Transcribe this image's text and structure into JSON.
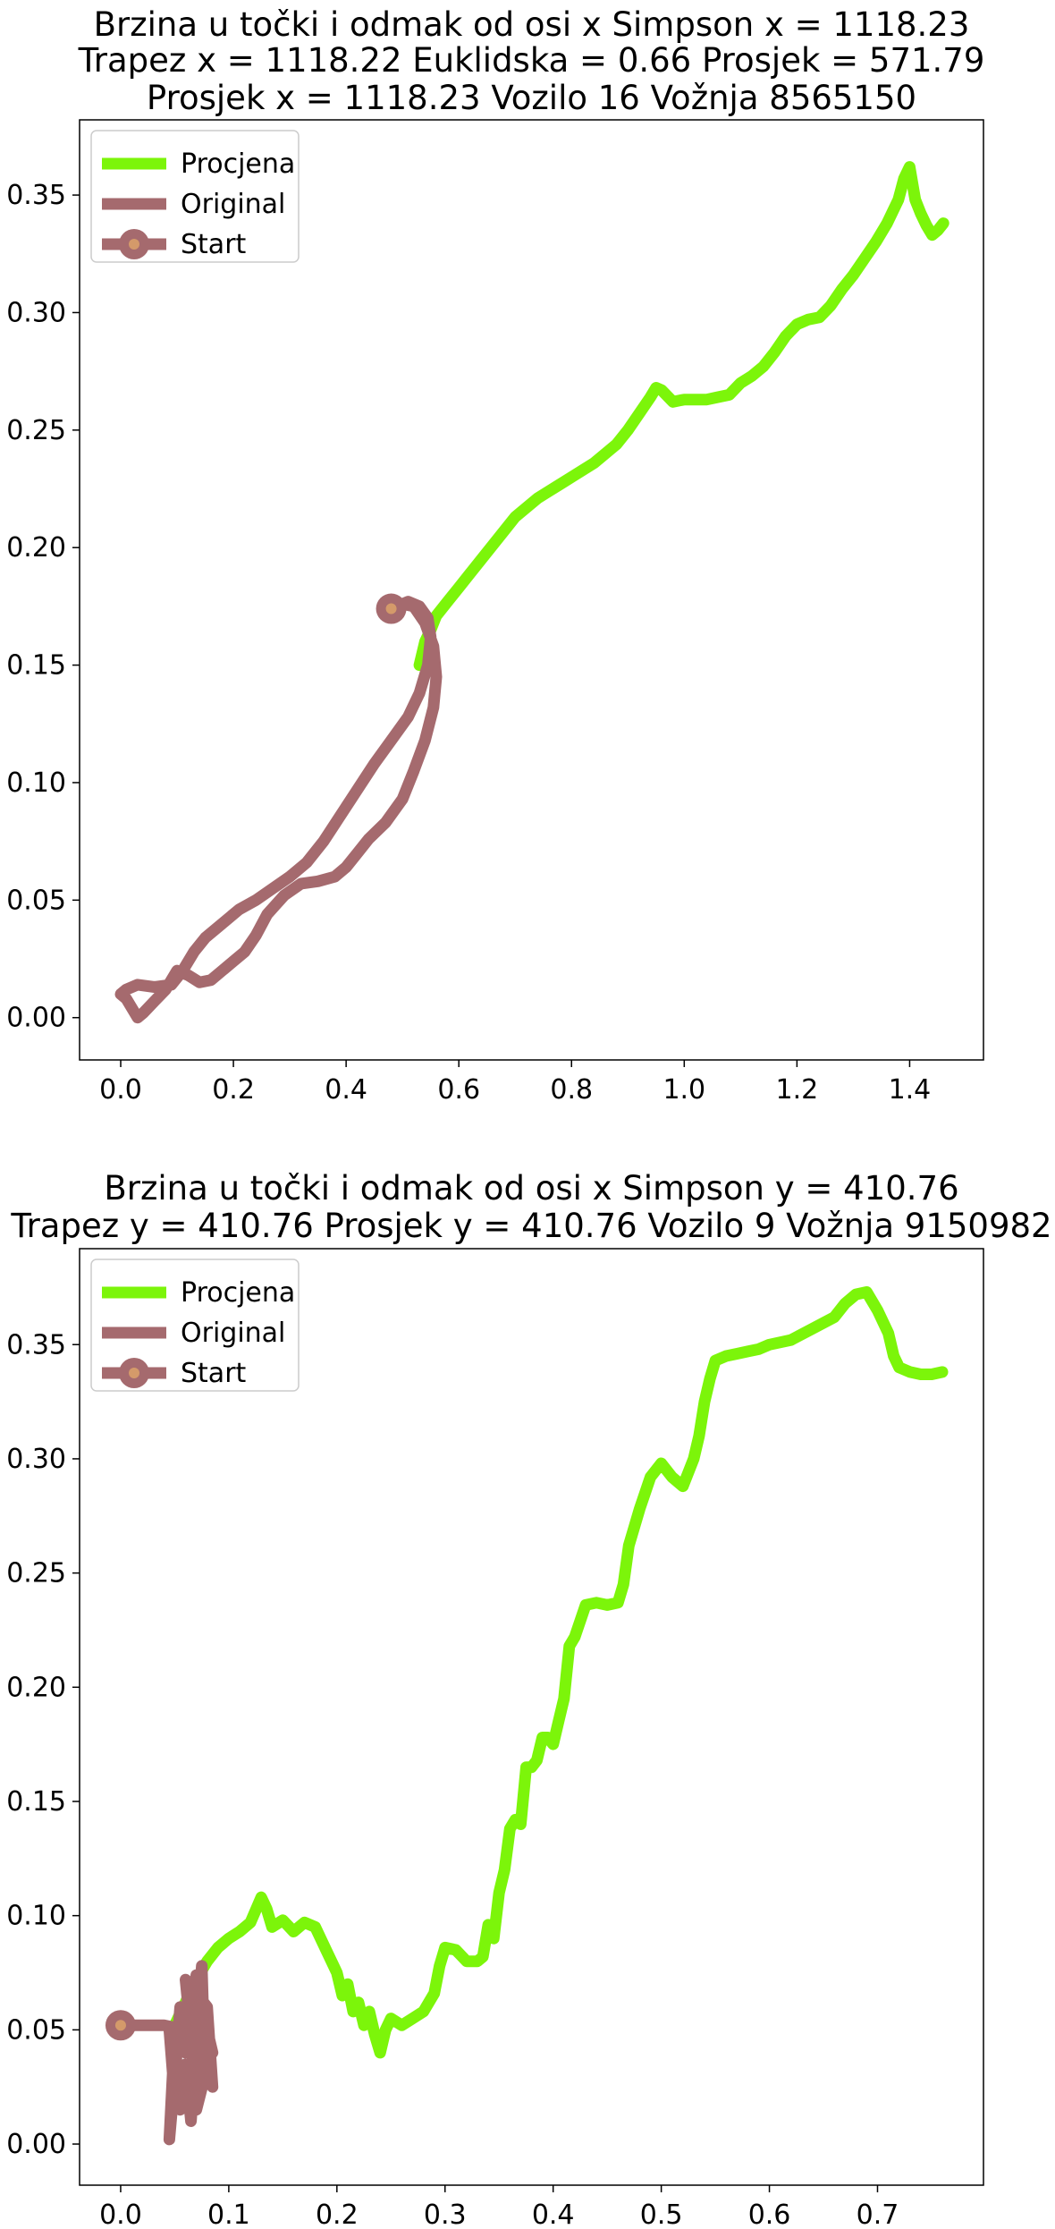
{
  "chart_data": [
    {
      "type": "line",
      "title": [
        "Brzina u točki i odmak od osi x Simpson x = 1118.23",
        "Trapez x = 1118.22 Euklidska = 0.66 Prosjek = 571.79",
        "Prosjek x = 1118.23 Vozilo 16 Vožnja 8565150"
      ],
      "xlabel": "",
      "ylabel": "",
      "xlim": [
        -0.073,
        1.531
      ],
      "ylim": [
        -0.018,
        0.382
      ],
      "xticks": [
        "0.0",
        "0.2",
        "0.4",
        "0.6",
        "0.8",
        "1.0",
        "1.2",
        "1.4"
      ],
      "yticks": [
        "0.00",
        "0.05",
        "0.10",
        "0.15",
        "0.20",
        "0.25",
        "0.30",
        "0.35"
      ],
      "grid": false,
      "legend_position": "upper-left",
      "legend": [
        "Procjena",
        "Original",
        "Start"
      ],
      "series": [
        {
          "name": "Procjena",
          "color": "#7cf50a",
          "points": [
            [
              0.53,
              0.15
            ],
            [
              0.54,
              0.16
            ],
            [
              0.55,
              0.165
            ],
            [
              0.56,
              0.171
            ],
            [
              0.58,
              0.177
            ],
            [
              0.6,
              0.183
            ],
            [
              0.62,
              0.189
            ],
            [
              0.64,
              0.195
            ],
            [
              0.66,
              0.201
            ],
            [
              0.68,
              0.207
            ],
            [
              0.7,
              0.213
            ],
            [
              0.72,
              0.217
            ],
            [
              0.74,
              0.221
            ],
            [
              0.76,
              0.224
            ],
            [
              0.78,
              0.227
            ],
            [
              0.8,
              0.23
            ],
            [
              0.82,
              0.233
            ],
            [
              0.84,
              0.236
            ],
            [
              0.86,
              0.24
            ],
            [
              0.88,
              0.244
            ],
            [
              0.9,
              0.25
            ],
            [
              0.92,
              0.257
            ],
            [
              0.94,
              0.264
            ],
            [
              0.95,
              0.268
            ],
            [
              0.96,
              0.267
            ],
            [
              0.98,
              0.262
            ],
            [
              1.0,
              0.263
            ],
            [
              1.02,
              0.263
            ],
            [
              1.04,
              0.263
            ],
            [
              1.06,
              0.264
            ],
            [
              1.08,
              0.265
            ],
            [
              1.1,
              0.27
            ],
            [
              1.12,
              0.273
            ],
            [
              1.14,
              0.277
            ],
            [
              1.16,
              0.283
            ],
            [
              1.18,
              0.29
            ],
            [
              1.2,
              0.295
            ],
            [
              1.22,
              0.297
            ],
            [
              1.24,
              0.298
            ],
            [
              1.26,
              0.303
            ],
            [
              1.28,
              0.31
            ],
            [
              1.3,
              0.316
            ],
            [
              1.32,
              0.323
            ],
            [
              1.34,
              0.33
            ],
            [
              1.36,
              0.338
            ],
            [
              1.38,
              0.348
            ],
            [
              1.39,
              0.357
            ],
            [
              1.4,
              0.362
            ],
            [
              1.41,
              0.348
            ],
            [
              1.42,
              0.342
            ],
            [
              1.43,
              0.337
            ],
            [
              1.44,
              0.333
            ],
            [
              1.45,
              0.335
            ],
            [
              1.46,
              0.338
            ]
          ]
        },
        {
          "name": "Original",
          "color": "#a56a6e",
          "points": [
            [
              0.48,
              0.174
            ],
            [
              0.5,
              0.176
            ],
            [
              0.52,
              0.175
            ],
            [
              0.54,
              0.168
            ],
            [
              0.555,
              0.158
            ],
            [
              0.56,
              0.145
            ],
            [
              0.555,
              0.132
            ],
            [
              0.54,
              0.118
            ],
            [
              0.52,
              0.105
            ],
            [
              0.5,
              0.093
            ],
            [
              0.47,
              0.083
            ],
            [
              0.44,
              0.076
            ],
            [
              0.42,
              0.07
            ],
            [
              0.4,
              0.064
            ],
            [
              0.38,
              0.06
            ],
            [
              0.35,
              0.058
            ],
            [
              0.32,
              0.057
            ],
            [
              0.29,
              0.052
            ],
            [
              0.26,
              0.044
            ],
            [
              0.24,
              0.035
            ],
            [
              0.22,
              0.028
            ],
            [
              0.2,
              0.024
            ],
            [
              0.18,
              0.02
            ],
            [
              0.16,
              0.016
            ],
            [
              0.14,
              0.015
            ],
            [
              0.12,
              0.018
            ],
            [
              0.1,
              0.02
            ],
            [
              0.08,
              0.012
            ],
            [
              0.06,
              0.007
            ],
            [
              0.04,
              0.002
            ],
            [
              0.03,
              0.0
            ],
            [
              0.02,
              0.004
            ],
            [
              0.01,
              0.008
            ],
            [
              0.0,
              0.01
            ],
            [
              0.01,
              0.012
            ],
            [
              0.03,
              0.014
            ],
            [
              0.06,
              0.013
            ],
            [
              0.09,
              0.014
            ],
            [
              0.11,
              0.02
            ],
            [
              0.13,
              0.028
            ],
            [
              0.15,
              0.034
            ],
            [
              0.18,
              0.04
            ],
            [
              0.21,
              0.046
            ],
            [
              0.24,
              0.05
            ],
            [
              0.27,
              0.055
            ],
            [
              0.3,
              0.06
            ],
            [
              0.33,
              0.066
            ],
            [
              0.36,
              0.075
            ],
            [
              0.39,
              0.086
            ],
            [
              0.42,
              0.097
            ],
            [
              0.45,
              0.108
            ],
            [
              0.48,
              0.118
            ],
            [
              0.51,
              0.128
            ],
            [
              0.53,
              0.138
            ],
            [
              0.545,
              0.15
            ],
            [
              0.55,
              0.162
            ],
            [
              0.545,
              0.17
            ],
            [
              0.53,
              0.175
            ],
            [
              0.51,
              0.177
            ],
            [
              0.49,
              0.175
            ]
          ]
        }
      ],
      "start": {
        "x": 0.48,
        "y": 0.174,
        "color": "#a56a6e",
        "inner_color": "#d49a6a"
      }
    },
    {
      "type": "line",
      "title": [
        "Brzina u točki i odmak od osi x Simpson y = 410.76",
        "Trapez y = 410.76 Prosjek y = 410.76 Vozilo 9 Vožnja 9150982"
      ],
      "xlabel": "",
      "ylabel": "",
      "xlim": [
        -0.038,
        0.798
      ],
      "ylim": [
        -0.018,
        0.392
      ],
      "xticks": [
        "0.0",
        "0.1",
        "0.2",
        "0.3",
        "0.4",
        "0.5",
        "0.6",
        "0.7"
      ],
      "yticks": [
        "0.00",
        "0.05",
        "0.10",
        "0.15",
        "0.20",
        "0.25",
        "0.30",
        "0.35"
      ],
      "grid": false,
      "legend_position": "upper-left",
      "legend": [
        "Procjena",
        "Original",
        "Start"
      ],
      "series": [
        {
          "name": "Procjena",
          "color": "#7cf50a",
          "points": [
            [
              0.05,
              0.052
            ],
            [
              0.06,
              0.062
            ],
            [
              0.07,
              0.072
            ],
            [
              0.08,
              0.08
            ],
            [
              0.09,
              0.086
            ],
            [
              0.1,
              0.09
            ],
            [
              0.11,
              0.093
            ],
            [
              0.12,
              0.097
            ],
            [
              0.13,
              0.108
            ],
            [
              0.135,
              0.103
            ],
            [
              0.14,
              0.095
            ],
            [
              0.15,
              0.098
            ],
            [
              0.16,
              0.093
            ],
            [
              0.17,
              0.097
            ],
            [
              0.18,
              0.095
            ],
            [
              0.19,
              0.085
            ],
            [
              0.2,
              0.075
            ],
            [
              0.205,
              0.065
            ],
            [
              0.21,
              0.07
            ],
            [
              0.215,
              0.058
            ],
            [
              0.22,
              0.062
            ],
            [
              0.225,
              0.052
            ],
            [
              0.23,
              0.058
            ],
            [
              0.235,
              0.048
            ],
            [
              0.24,
              0.04
            ],
            [
              0.245,
              0.05
            ],
            [
              0.25,
              0.055
            ],
            [
              0.26,
              0.052
            ],
            [
              0.27,
              0.055
            ],
            [
              0.28,
              0.058
            ],
            [
              0.29,
              0.066
            ],
            [
              0.295,
              0.078
            ],
            [
              0.3,
              0.086
            ],
            [
              0.31,
              0.085
            ],
            [
              0.32,
              0.08
            ],
            [
              0.33,
              0.08
            ],
            [
              0.335,
              0.082
            ],
            [
              0.34,
              0.096
            ],
            [
              0.345,
              0.09
            ],
            [
              0.35,
              0.11
            ],
            [
              0.355,
              0.12
            ],
            [
              0.36,
              0.138
            ],
            [
              0.365,
              0.142
            ],
            [
              0.37,
              0.14
            ],
            [
              0.375,
              0.165
            ],
            [
              0.38,
              0.165
            ],
            [
              0.385,
              0.168
            ],
            [
              0.39,
              0.178
            ],
            [
              0.395,
              0.178
            ],
            [
              0.4,
              0.175
            ],
            [
              0.405,
              0.185
            ],
            [
              0.41,
              0.195
            ],
            [
              0.415,
              0.218
            ],
            [
              0.42,
              0.222
            ],
            [
              0.43,
              0.236
            ],
            [
              0.44,
              0.237
            ],
            [
              0.45,
              0.236
            ],
            [
              0.46,
              0.237
            ],
            [
              0.465,
              0.245
            ],
            [
              0.47,
              0.262
            ],
            [
              0.48,
              0.278
            ],
            [
              0.49,
              0.292
            ],
            [
              0.5,
              0.298
            ],
            [
              0.51,
              0.292
            ],
            [
              0.52,
              0.288
            ],
            [
              0.53,
              0.3
            ],
            [
              0.535,
              0.31
            ],
            [
              0.54,
              0.325
            ],
            [
              0.545,
              0.335
            ],
            [
              0.55,
              0.343
            ],
            [
              0.56,
              0.345
            ],
            [
              0.57,
              0.346
            ],
            [
              0.58,
              0.347
            ],
            [
              0.59,
              0.348
            ],
            [
              0.6,
              0.35
            ],
            [
              0.62,
              0.352
            ],
            [
              0.64,
              0.357
            ],
            [
              0.66,
              0.362
            ],
            [
              0.67,
              0.368
            ],
            [
              0.68,
              0.372
            ],
            [
              0.69,
              0.373
            ],
            [
              0.7,
              0.365
            ],
            [
              0.71,
              0.355
            ],
            [
              0.715,
              0.345
            ],
            [
              0.72,
              0.34
            ],
            [
              0.73,
              0.338
            ],
            [
              0.74,
              0.337
            ],
            [
              0.75,
              0.337
            ],
            [
              0.76,
              0.338
            ]
          ]
        },
        {
          "name": "Original",
          "color": "#a56a6e",
          "points": [
            [
              0.0,
              0.052
            ],
            [
              0.04,
              0.052
            ],
            [
              0.06,
              0.05
            ],
            [
              0.065,
              0.055
            ],
            [
              0.07,
              0.074
            ],
            [
              0.07,
              0.045
            ],
            [
              0.065,
              0.068
            ],
            [
              0.06,
              0.04
            ],
            [
              0.055,
              0.06
            ],
            [
              0.05,
              0.03
            ],
            [
              0.045,
              0.05
            ],
            [
              0.05,
              0.02
            ],
            [
              0.055,
              0.015
            ],
            [
              0.06,
              0.035
            ],
            [
              0.065,
              0.01
            ],
            [
              0.07,
              0.045
            ],
            [
              0.075,
              0.078
            ],
            [
              0.078,
              0.03
            ],
            [
              0.07,
              0.015
            ],
            [
              0.065,
              0.048
            ],
            [
              0.06,
              0.072
            ],
            [
              0.08,
              0.06
            ],
            [
              0.085,
              0.025
            ],
            [
              0.075,
              0.038
            ],
            [
              0.068,
              0.058
            ],
            [
              0.05,
              0.048
            ],
            [
              0.045,
              0.002
            ],
            [
              0.052,
              0.04
            ],
            [
              0.06,
              0.055
            ],
            [
              0.07,
              0.03
            ],
            [
              0.08,
              0.05
            ],
            [
              0.085,
              0.04
            ]
          ]
        }
      ],
      "start": {
        "x": 0.0,
        "y": 0.052,
        "color": "#a56a6e",
        "inner_color": "#d49a6a"
      }
    }
  ]
}
